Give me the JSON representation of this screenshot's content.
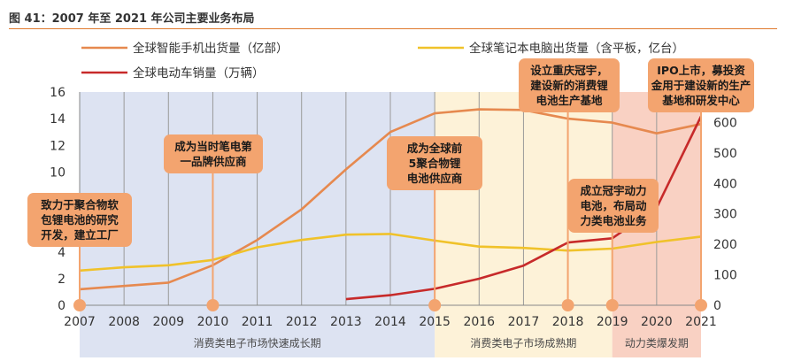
{
  "figure_title": "图 41：2007 年至 2021 年公司主要业务布局",
  "chart_data": {
    "type": "line",
    "x": [
      2007,
      2008,
      2009,
      2010,
      2011,
      2012,
      2013,
      2014,
      2015,
      2016,
      2017,
      2018,
      2019,
      2020,
      2021
    ],
    "y_left": {
      "ylim": [
        0,
        16
      ],
      "ticks": [
        0,
        2,
        4,
        6,
        8,
        10,
        12,
        14,
        16
      ]
    },
    "y_right": {
      "ylim": [
        0,
        700
      ],
      "ticks": [
        0,
        100,
        200,
        300,
        400,
        500,
        600
      ]
    },
    "series": [
      {
        "name": "全球智能手机出货量（亿部）",
        "axis": "left",
        "color": "#e6894f",
        "values": [
          1.2,
          1.45,
          1.7,
          3.0,
          4.9,
          7.2,
          10.2,
          13.0,
          14.4,
          14.7,
          14.65,
          14.0,
          13.7,
          12.9,
          13.6
        ]
      },
      {
        "name": "全球笔记本电脑出货量（含平板，亿台）",
        "axis": "left",
        "color": "#f0c22a",
        "values": [
          2.6,
          2.85,
          3.0,
          3.4,
          4.35,
          4.9,
          5.3,
          5.35,
          4.85,
          4.4,
          4.3,
          4.1,
          4.25,
          4.75,
          5.15
        ]
      },
      {
        "name": "全球电动车销量（万辆）",
        "axis": "right",
        "color": "#c72a2a",
        "values": [
          null,
          null,
          null,
          null,
          null,
          null,
          20,
          33,
          54,
          87,
          130,
          206,
          220,
          320,
          620
        ]
      }
    ],
    "legend": {
      "placement": "top",
      "columns": 2
    },
    "grid": "vertical",
    "periods": [
      {
        "label": "消费类电子市场快速成长期",
        "start": 2007,
        "end": 2015,
        "color": "#dde3f2"
      },
      {
        "label": "消费类电子市场成熟期",
        "start": 2015,
        "end": 2019,
        "color": "#fdf2d8"
      },
      {
        "label": "动力类爆发期",
        "start": 2019,
        "end": 2021,
        "color": "#f9d1c3"
      }
    ],
    "milestones": [
      {
        "year": 2007,
        "text": "致力于聚合物软包锂电池的研究开发，建立工厂"
      },
      {
        "year": 2010,
        "text": "成为当时笔电第一品牌供应商"
      },
      {
        "year": 2015,
        "text": "成为全球前5聚合物锂电池供应商"
      },
      {
        "year": 2018,
        "text": "设立重庆冠宇，建设新的消费锂电池生产基地"
      },
      {
        "year": 2019,
        "text": "成立冠宇动力电池，布局动力类电池业务"
      },
      {
        "year": 2021,
        "text": "IPO上市，募投资金用于建设新的生产基地和研发中心"
      }
    ]
  }
}
